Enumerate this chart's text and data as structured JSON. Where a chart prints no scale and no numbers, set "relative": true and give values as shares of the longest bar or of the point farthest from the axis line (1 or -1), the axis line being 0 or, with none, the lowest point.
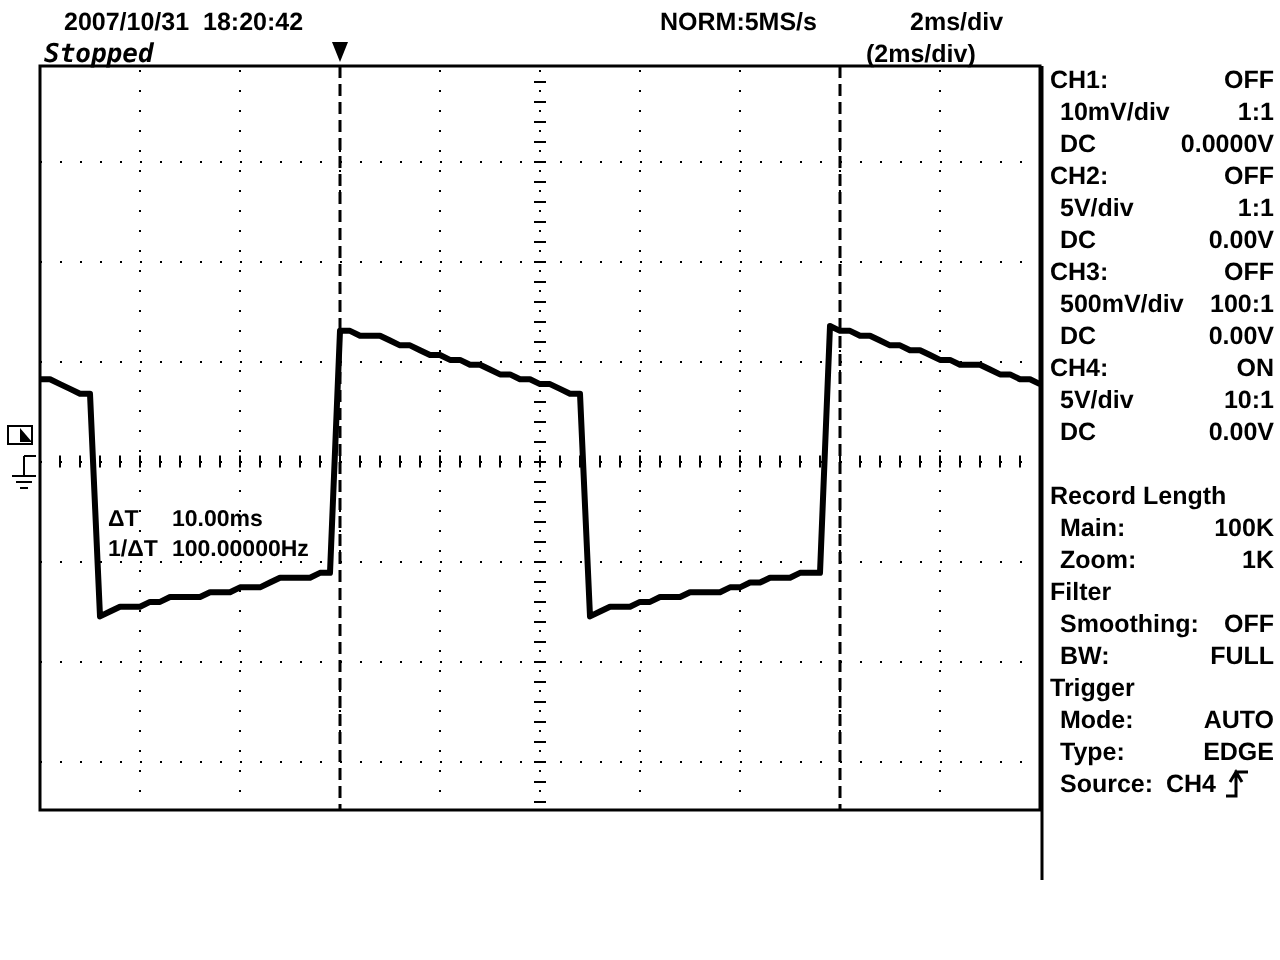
{
  "chart_data": {
    "type": "line",
    "title": "2007/10/31  18:20:42",
    "subtitle": "Stopped",
    "relative": true,
    "grid": true,
    "line_style": "solid",
    "categories": [
      null,
      null,
      null,
      null,
      null,
      null,
      null,
      null,
      null,
      null,
      null,
      null,
      null,
      null,
      null,
      null,
      null,
      null,
      null,
      null,
      null,
      null,
      null,
      null,
      null,
      null,
      null,
      null,
      null,
      null,
      null,
      null,
      null,
      null,
      null,
      null,
      null,
      null,
      null,
      null,
      null,
      null,
      null,
      null,
      null,
      null,
      null,
      null,
      null,
      null,
      null,
      null,
      null,
      null,
      null,
      null,
      null,
      null,
      null,
      null,
      null,
      null,
      null,
      null,
      null,
      null,
      null,
      null,
      null,
      null,
      null,
      null,
      null,
      null,
      null,
      null,
      null,
      null,
      null,
      null,
      null,
      null,
      null,
      null,
      null,
      null,
      null,
      null,
      null,
      null,
      null,
      null,
      null,
      null,
      null,
      null,
      null,
      null,
      null,
      null,
      null
    ],
    "series": [
      {
        "color": "#000000",
        "values": [
          0.89,
          0.89,
          0.88,
          0.87,
          0.86,
          0.86,
          0.4,
          0.41,
          0.42,
          0.42,
          0.42,
          0.43,
          0.43,
          0.44,
          0.44,
          0.44,
          0.44,
          0.45,
          0.45,
          0.45,
          0.46,
          0.46,
          0.46,
          0.47,
          0.48,
          0.48,
          0.48,
          0.48,
          0.49,
          0.49,
          0.99,
          0.99,
          0.98,
          0.98,
          0.98,
          0.97,
          0.96,
          0.96,
          0.95,
          0.94,
          0.94,
          0.93,
          0.93,
          0.92,
          0.92,
          0.91,
          0.9,
          0.9,
          0.89,
          0.89,
          0.88,
          0.88,
          0.87,
          0.86,
          0.86,
          0.4,
          0.41,
          0.42,
          0.42,
          0.42,
          0.43,
          0.43,
          0.44,
          0.44,
          0.44,
          0.45,
          0.45,
          0.45,
          0.45,
          0.46,
          0.46,
          0.47,
          0.47,
          0.48,
          0.48,
          0.48,
          0.49,
          0.49,
          0.49,
          1,
          0.99,
          0.99,
          0.98,
          0.98,
          0.97,
          0.96,
          0.96,
          0.95,
          0.95,
          0.94,
          0.93,
          0.93,
          0.92,
          0.92,
          0.92,
          0.91,
          0.9,
          0.9,
          0.89,
          0.89,
          0.88
        ]
      }
    ],
    "ref_lines": [
      {
        "axis": "y",
        "value": 0.72,
        "line_style": "dotted",
        "color": "#000000"
      }
    ],
    "annotations": [
      "NORM:5MS/s",
      "2ms/div",
      "(2ms/div)",
      "ΔT",
      "10.00ms",
      "1/ΔT",
      "100.00000Hz",
      "CH1:",
      "OFF",
      "10mV/div",
      "1:1",
      "DC",
      "0.0000V",
      "CH2:",
      "OFF",
      "5V/div",
      "1:1",
      "DC",
      "0.00V",
      "CH3:",
      "OFF",
      "500mV/div",
      "100:1",
      "DC",
      "0.00V",
      "CH4:",
      "ON",
      "5V/div",
      "10:1",
      "DC",
      "0.00V",
      "Record Length",
      "Main:",
      "100K",
      "Zoom:",
      "1K",
      "Filter",
      "Smoothing:",
      "OFF",
      "BW:",
      "FULL",
      "Trigger",
      "Mode:",
      "AUTO",
      "Type:",
      "EDGE",
      "Source:",
      "CH4"
    ]
  }
}
